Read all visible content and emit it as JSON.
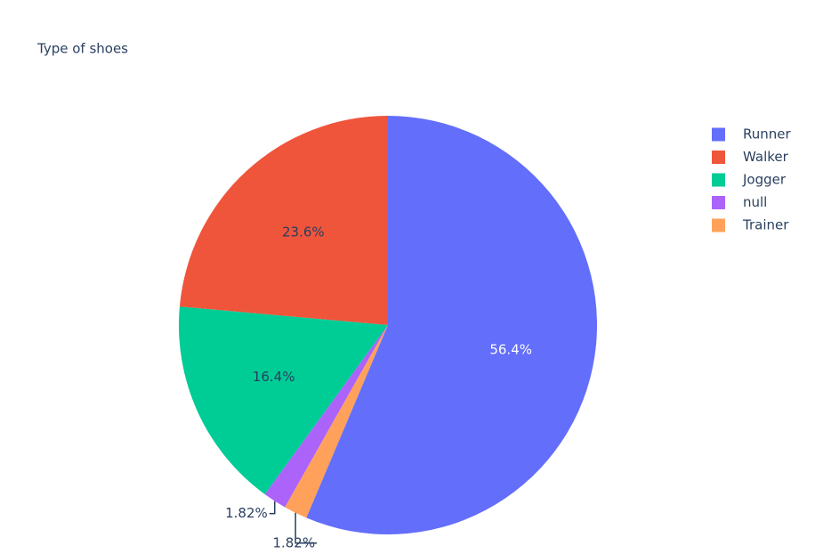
{
  "chart_data": {
    "type": "pie",
    "title": "Type of shoes",
    "categories": [
      "Runner",
      "Walker",
      "Jogger",
      "null",
      "Trainer"
    ],
    "values": [
      56.4,
      23.6,
      16.4,
      1.82,
      1.82
    ],
    "value_labels": [
      "56.4%",
      "23.6%",
      "16.4%",
      "1.82%",
      "1.82%"
    ],
    "colors": [
      "#636efa",
      "#ef553b",
      "#00cc96",
      "#ab63fa",
      "#ffa15a"
    ],
    "legend": "top-right"
  }
}
